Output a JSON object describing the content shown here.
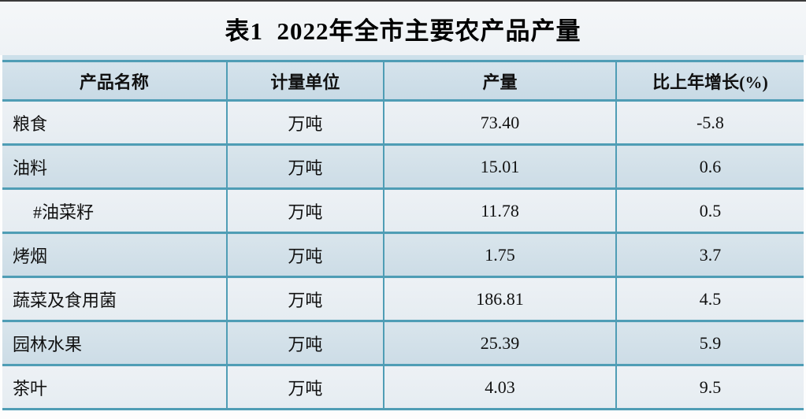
{
  "title": "表1  2022年全市主要农产品产量",
  "table": {
    "columns": [
      "产品名称",
      "计量单位",
      "产量",
      "比上年增长(%)"
    ],
    "rows": [
      {
        "name": "粮食",
        "unit": "万吨",
        "output": "73.40",
        "growth": "-5.8",
        "indent": false
      },
      {
        "name": "油料",
        "unit": "万吨",
        "output": "15.01",
        "growth": "0.6",
        "indent": false
      },
      {
        "name": "#油菜籽",
        "unit": "万吨",
        "output": "11.78",
        "growth": "0.5",
        "indent": true
      },
      {
        "name": "烤烟",
        "unit": "万吨",
        "output": "1.75",
        "growth": "3.7",
        "indent": false
      },
      {
        "name": "蔬菜及食用菌",
        "unit": "万吨",
        "output": "186.81",
        "growth": "4.5",
        "indent": false
      },
      {
        "name": "园林水果",
        "unit": "万吨",
        "output": "25.39",
        "growth": "5.9",
        "indent": false
      },
      {
        "name": "茶叶",
        "unit": "万吨",
        "output": "4.03",
        "growth": "9.5",
        "indent": false
      }
    ]
  },
  "colors": {
    "teal_border": "#4f9db5",
    "top_line": "#3a3a3a",
    "title_bg_1": "#f5f7f9",
    "title_bg_2": "#eef2f5",
    "strip_bg": "#cde0ea",
    "header_bg_1": "#d5e3ec",
    "header_bg_2": "#c8dae5",
    "row_light_1": "#edf1f5",
    "row_light_2": "#e5ecf1",
    "row_alt_1": "#d9e5ec",
    "row_alt_2": "#ccdce6",
    "text_color": "#111111",
    "page_bg": "#fdfdfd"
  }
}
